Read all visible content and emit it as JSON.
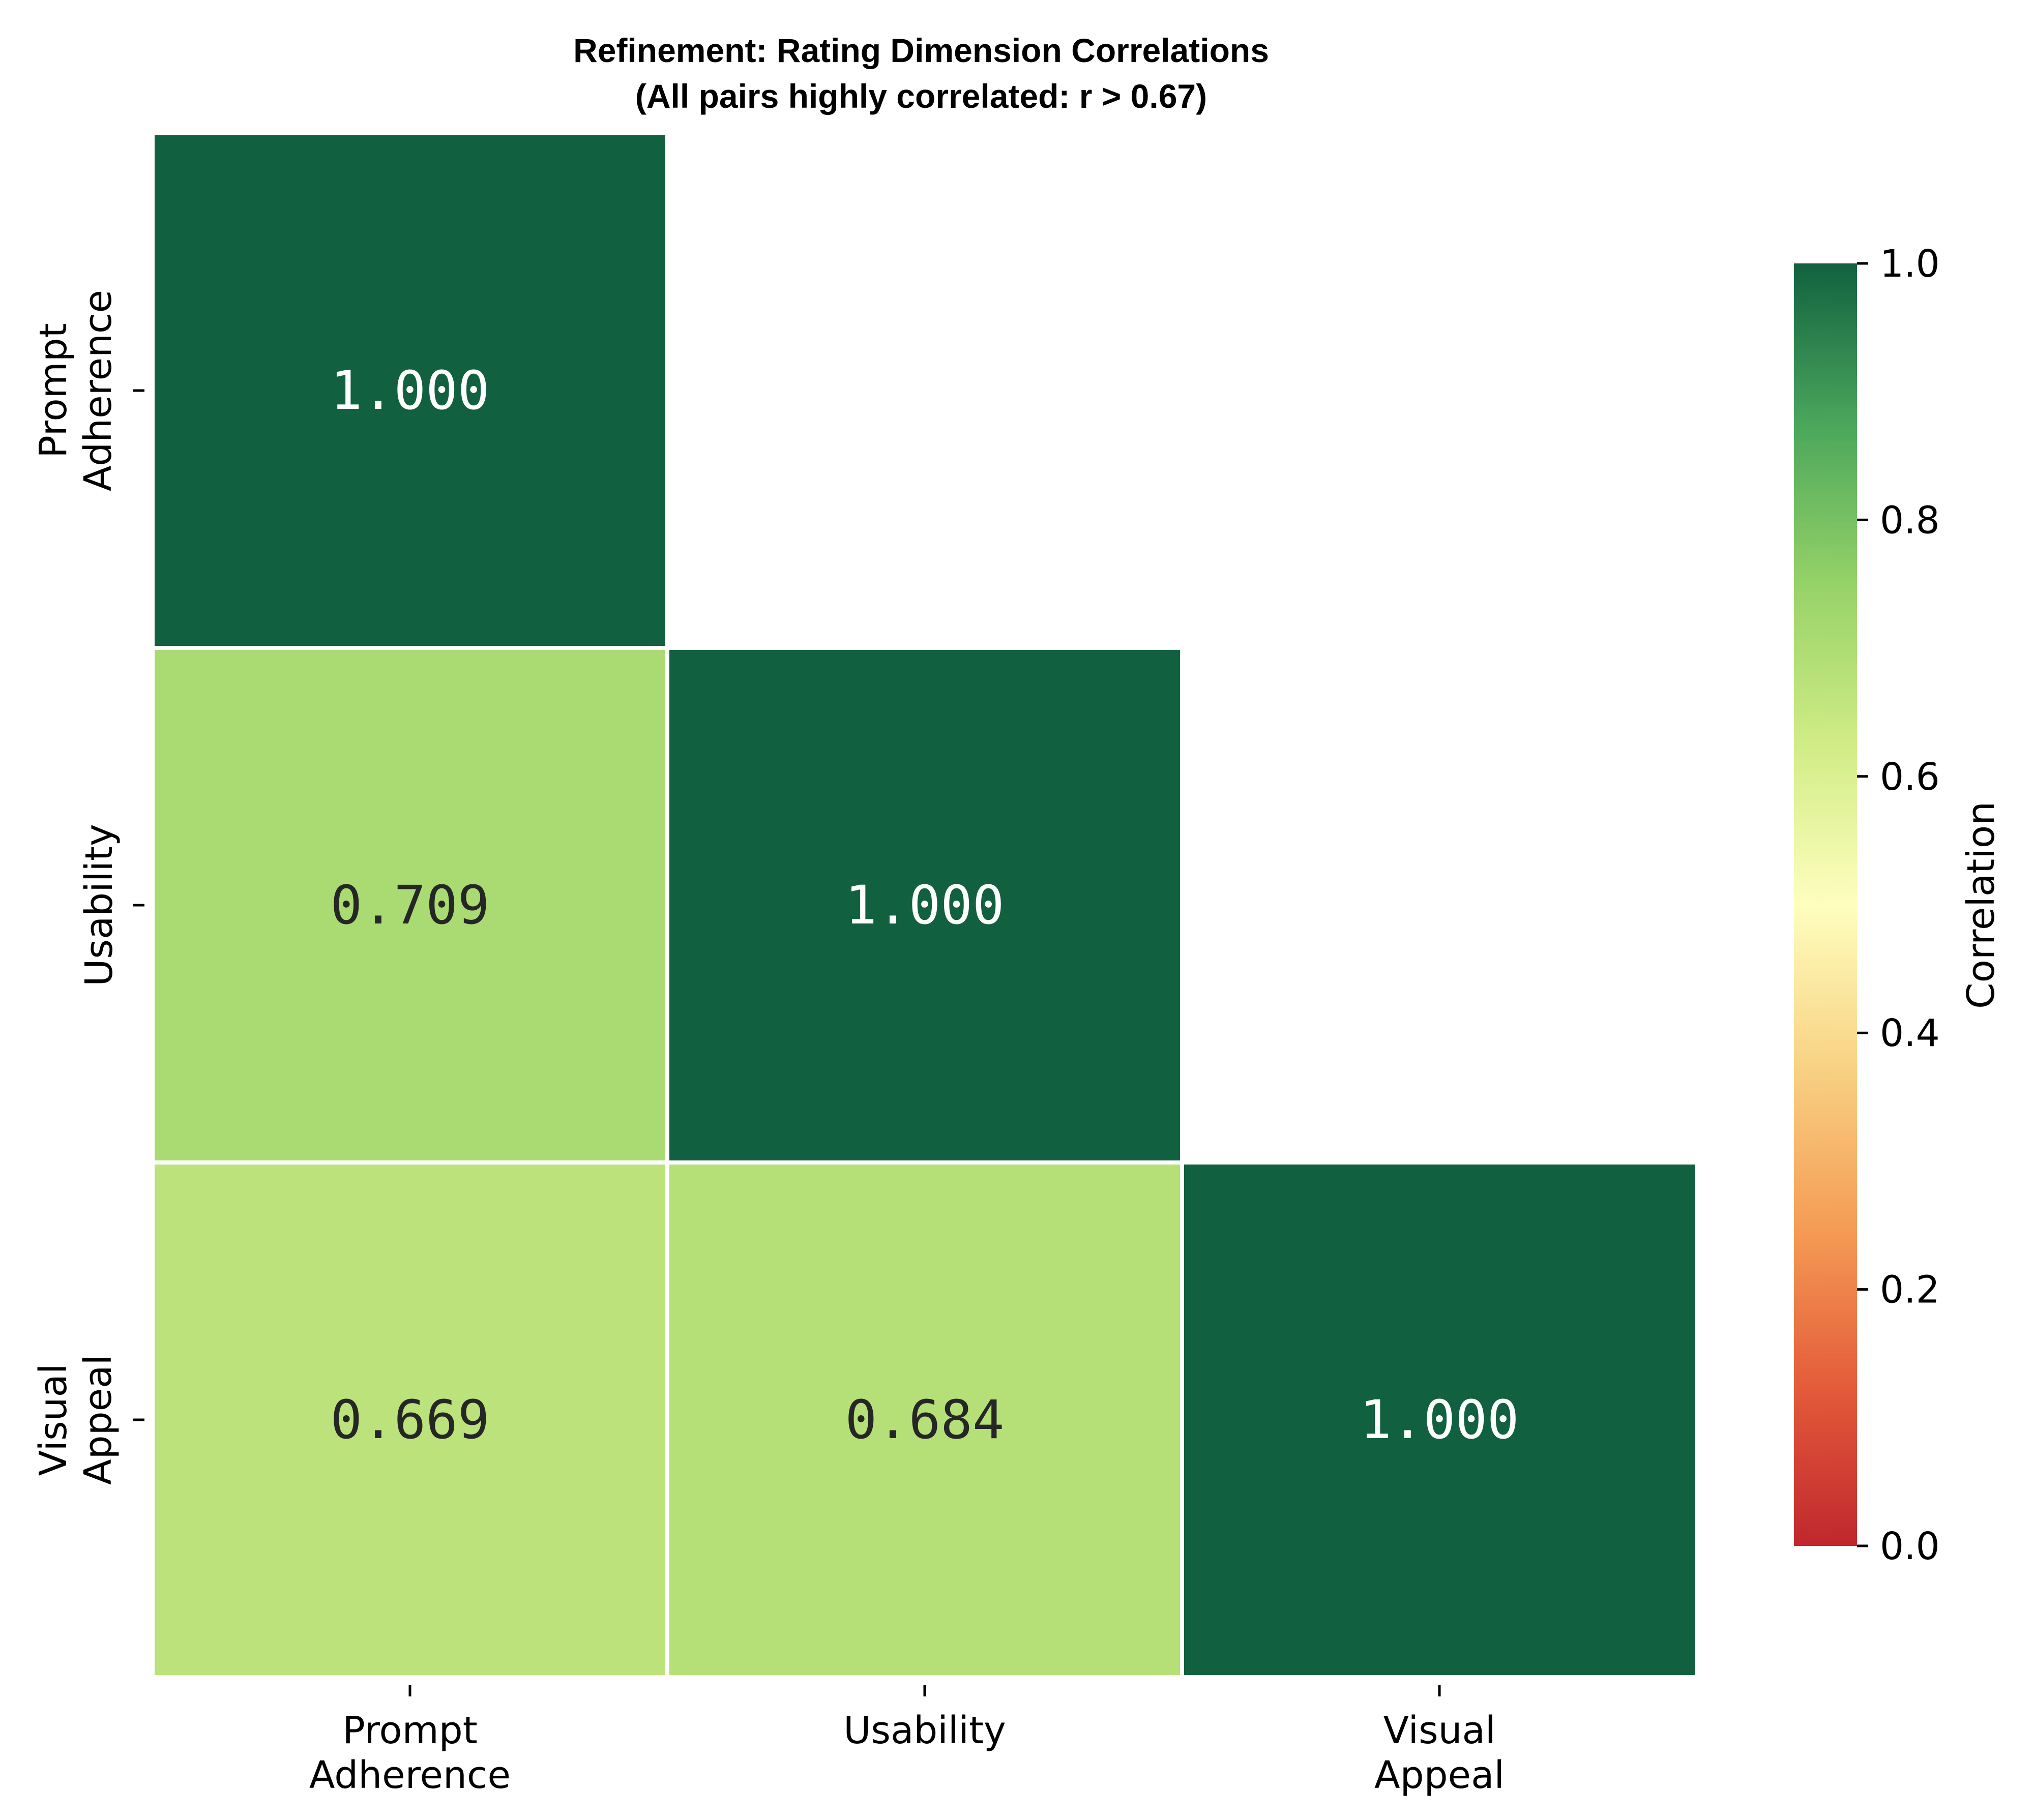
{
  "chart_data": {
    "type": "heatmap",
    "title": "Refinement: Rating Dimension Correlations",
    "subtitle": "(All pairs highly correlated: r > 0.67)",
    "xlabel": "",
    "ylabel": "",
    "rows": [
      [
        "Prompt",
        "Adherence"
      ],
      [
        "Usability"
      ],
      [
        "Visual",
        "Appeal"
      ]
    ],
    "columns": [
      [
        "Prompt",
        "Adherence"
      ],
      [
        "Usability"
      ],
      [
        "Visual",
        "Appeal"
      ]
    ],
    "matrix": [
      [
        1.0,
        null,
        null
      ],
      [
        0.709,
        1.0,
        null
      ],
      [
        0.669,
        0.684,
        1.0
      ]
    ],
    "labels": [
      [
        "1.000",
        "",
        ""
      ],
      [
        "0.709",
        "1.000",
        ""
      ],
      [
        "0.669",
        "0.684",
        "1.000"
      ]
    ],
    "mask": "upper-triangle",
    "colorbar": {
      "label": "Correlation",
      "range": [
        0.0,
        1.0
      ],
      "ticks": [
        "0.0",
        "0.2",
        "0.4",
        "0.6",
        "0.8",
        "1.0"
      ],
      "colormap": "RdYlGn",
      "stops": [
        "#c0272d",
        "#e45c3a",
        "#f59d56",
        "#f8d284",
        "#fefebe",
        "#d1ec86",
        "#96d268",
        "#4aa65b",
        "#116140"
      ]
    },
    "grid": false
  }
}
